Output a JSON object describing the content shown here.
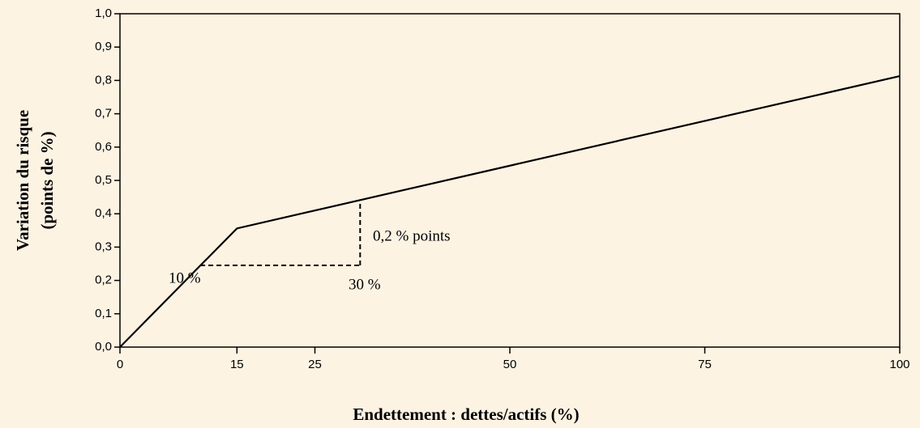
{
  "chart_data": {
    "type": "line",
    "xlabel": "Endettement : dettes/actifs (%)",
    "ylabel": [
      "Variation du risque",
      "(points de %)"
    ],
    "series": [
      {
        "name": "Variation du risque",
        "color": "#000000",
        "x": [
          0,
          15,
          100
        ],
        "values": [
          0,
          0.356,
          0.813
        ]
      }
    ],
    "guides": [
      {
        "x": [
          10.3,
          30.8
        ],
        "y": [
          0.245,
          0.245
        ]
      },
      {
        "x": [
          30.8,
          30.8
        ],
        "y": [
          0.245,
          0.44
        ]
      }
    ],
    "annotations": [
      "10 %",
      "30 %",
      "0,2 % points"
    ],
    "xlim": [
      0,
      100
    ],
    "xticks": [
      0,
      15,
      25,
      50,
      75,
      100
    ],
    "ylim": [
      0,
      1
    ],
    "yticks": [
      {
        "value": 0,
        "label": "0,0"
      },
      {
        "value": 0.1,
        "label": "0,1"
      },
      {
        "value": 0.2,
        "label": "0,2"
      },
      {
        "value": 0.3,
        "label": "0,3"
      },
      {
        "value": 0.4,
        "label": "0,4"
      },
      {
        "value": 0.5,
        "label": "0,5"
      },
      {
        "value": 0.6,
        "label": "0,6"
      },
      {
        "value": 0.7,
        "label": "0,7"
      },
      {
        "value": 0.8,
        "label": "0,8"
      },
      {
        "value": 0.9,
        "label": "0,9"
      },
      {
        "value": 1,
        "label": "1,0"
      }
    ]
  }
}
